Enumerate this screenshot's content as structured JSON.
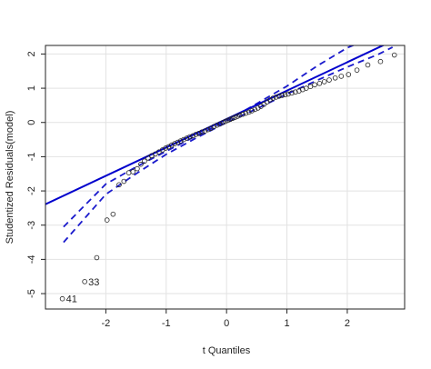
{
  "chart_data": {
    "type": "scatter",
    "title": "",
    "xlabel": "t Quantiles",
    "ylabel": "Studentized Residuals(model)",
    "xlim": [
      -3.0,
      2.95
    ],
    "ylim": [
      -5.45,
      2.25
    ],
    "x_ticks": [
      -2,
      -1,
      0,
      1,
      2
    ],
    "y_ticks": [
      -5,
      -4,
      -3,
      -2,
      -1,
      0,
      1,
      2
    ],
    "x_tick_labels": [
      "-2",
      "-1",
      "0",
      "1",
      "2"
    ],
    "y_tick_labels": [
      "-5",
      "-4",
      "-3",
      "-2",
      "-1",
      "0",
      "1",
      "2"
    ],
    "grid": true,
    "colors": {
      "points": "#222222",
      "fit_line": "#0000cc",
      "envelope": "#1a1acc",
      "grid": "#e2e2e2"
    },
    "reference_line": {
      "intercept": 0.1,
      "slope": 0.83
    },
    "confidence_envelope": {
      "upper": [
        [
          -2.7,
          -3.05
        ],
        [
          -2.0,
          -1.8
        ],
        [
          -1.5,
          -1.3
        ],
        [
          -1.0,
          -0.84
        ],
        [
          -0.5,
          -0.39
        ],
        [
          0.0,
          0.05
        ],
        [
          0.5,
          0.55
        ],
        [
          1.0,
          1.06
        ],
        [
          1.5,
          1.65
        ],
        [
          2.0,
          2.18
        ],
        [
          2.3,
          2.4
        ]
      ],
      "lower": [
        [
          -2.7,
          -3.5
        ],
        [
          -2.3,
          -2.7
        ],
        [
          -2.0,
          -2.1
        ],
        [
          -1.5,
          -1.5
        ],
        [
          -1.0,
          -0.93
        ],
        [
          -0.5,
          -0.45
        ],
        [
          0.0,
          0.0
        ],
        [
          0.5,
          0.4
        ],
        [
          1.0,
          0.83
        ],
        [
          1.5,
          1.23
        ],
        [
          2.0,
          1.62
        ],
        [
          2.5,
          1.98
        ],
        [
          2.75,
          2.2
        ]
      ]
    },
    "points": [
      {
        "x": -2.72,
        "y": -5.15,
        "label": "41"
      },
      {
        "x": -2.35,
        "y": -4.65,
        "label": "33"
      },
      {
        "x": -2.15,
        "y": -3.95
      },
      {
        "x": -1.98,
        "y": -2.85
      },
      {
        "x": -1.88,
        "y": -2.68
      },
      {
        "x": -1.78,
        "y": -1.82
      },
      {
        "x": -1.7,
        "y": -1.72
      },
      {
        "x": -1.62,
        "y": -1.47
      },
      {
        "x": -1.55,
        "y": -1.44
      },
      {
        "x": -1.48,
        "y": -1.35
      },
      {
        "x": -1.42,
        "y": -1.22
      },
      {
        "x": -1.36,
        "y": -1.13
      },
      {
        "x": -1.3,
        "y": -1.04
      },
      {
        "x": -1.24,
        "y": -0.97
      },
      {
        "x": -1.18,
        "y": -0.92
      },
      {
        "x": -1.12,
        "y": -0.86
      },
      {
        "x": -1.06,
        "y": -0.8
      },
      {
        "x": -1.01,
        "y": -0.75
      },
      {
        "x": -0.96,
        "y": -0.71
      },
      {
        "x": -0.91,
        "y": -0.66
      },
      {
        "x": -0.86,
        "y": -0.62
      },
      {
        "x": -0.81,
        "y": -0.58
      },
      {
        "x": -0.76,
        "y": -0.54
      },
      {
        "x": -0.71,
        "y": -0.5
      },
      {
        "x": -0.66,
        "y": -0.46
      },
      {
        "x": -0.61,
        "y": -0.42
      },
      {
        "x": -0.56,
        "y": -0.39
      },
      {
        "x": -0.51,
        "y": -0.35
      },
      {
        "x": -0.46,
        "y": -0.32
      },
      {
        "x": -0.41,
        "y": -0.28
      },
      {
        "x": -0.36,
        "y": -0.25
      },
      {
        "x": -0.31,
        "y": -0.21
      },
      {
        "x": -0.26,
        "y": -0.17
      },
      {
        "x": -0.21,
        "y": -0.12
      },
      {
        "x": -0.16,
        "y": -0.08
      },
      {
        "x": -0.11,
        "y": -0.04
      },
      {
        "x": -0.06,
        "y": 0.0
      },
      {
        "x": -0.02,
        "y": 0.03
      },
      {
        "x": 0.02,
        "y": 0.06
      },
      {
        "x": 0.06,
        "y": 0.09
      },
      {
        "x": 0.1,
        "y": 0.12
      },
      {
        "x": 0.14,
        "y": 0.15
      },
      {
        "x": 0.18,
        "y": 0.18
      },
      {
        "x": 0.22,
        "y": 0.21
      },
      {
        "x": 0.27,
        "y": 0.24
      },
      {
        "x": 0.32,
        "y": 0.27
      },
      {
        "x": 0.37,
        "y": 0.3
      },
      {
        "x": 0.42,
        "y": 0.34
      },
      {
        "x": 0.47,
        "y": 0.38
      },
      {
        "x": 0.52,
        "y": 0.42
      },
      {
        "x": 0.57,
        "y": 0.47
      },
      {
        "x": 0.62,
        "y": 0.53
      },
      {
        "x": 0.67,
        "y": 0.6
      },
      {
        "x": 0.72,
        "y": 0.66
      },
      {
        "x": 0.77,
        "y": 0.71
      },
      {
        "x": 0.82,
        "y": 0.74
      },
      {
        "x": 0.87,
        "y": 0.77
      },
      {
        "x": 0.92,
        "y": 0.79
      },
      {
        "x": 0.97,
        "y": 0.81
      },
      {
        "x": 1.02,
        "y": 0.83
      },
      {
        "x": 1.08,
        "y": 0.86
      },
      {
        "x": 1.14,
        "y": 0.89
      },
      {
        "x": 1.2,
        "y": 0.92
      },
      {
        "x": 1.26,
        "y": 0.96
      },
      {
        "x": 1.32,
        "y": 1.0
      },
      {
        "x": 1.39,
        "y": 1.05
      },
      {
        "x": 1.46,
        "y": 1.1
      },
      {
        "x": 1.54,
        "y": 1.14
      },
      {
        "x": 1.62,
        "y": 1.19
      },
      {
        "x": 1.7,
        "y": 1.24
      },
      {
        "x": 1.8,
        "y": 1.3
      },
      {
        "x": 1.9,
        "y": 1.35
      },
      {
        "x": 2.02,
        "y": 1.4
      },
      {
        "x": 2.16,
        "y": 1.53
      },
      {
        "x": 2.34,
        "y": 1.68
      },
      {
        "x": 2.55,
        "y": 1.78
      },
      {
        "x": 2.78,
        "y": 1.97
      }
    ]
  }
}
